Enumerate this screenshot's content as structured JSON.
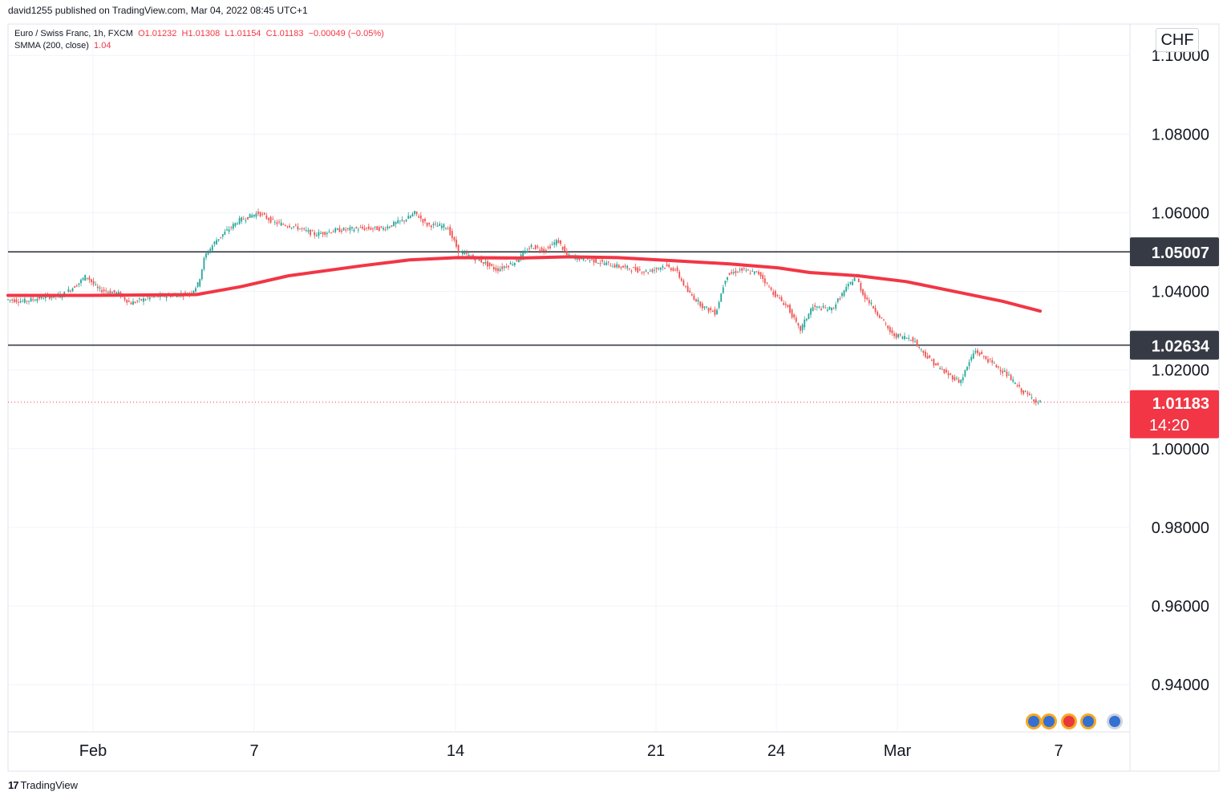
{
  "credit": "david1255 published on TradingView.com, Mar 04, 2022 08:45 UTC+1",
  "legend": {
    "symbol": "Euro / Swiss Franc, 1h, FXCM",
    "open": "O1.01232",
    "high": "H1.01308",
    "low": "L1.01154",
    "close": "C1.01183",
    "change": "−0.00049 (−0.05%)",
    "indicator": "SMMA (200, close)",
    "indicator_value": "1.04"
  },
  "currency": "CHF",
  "branding": "TradingView",
  "colors": {
    "up": "#26a69a",
    "down": "#ef5350",
    "smma": "#f23645",
    "level": "#363a45",
    "price_tag": "#f23645"
  },
  "chart_data": {
    "type": "candlestick",
    "ylim": [
      0.928,
      1.108
    ],
    "y_ticks": [
      "1.10000",
      "1.08000",
      "1.06000",
      "1.04000",
      "1.02000",
      "1.00000",
      "0.98000",
      "0.96000",
      "0.94000"
    ],
    "y_tick_values": [
      1.1,
      1.08,
      1.06,
      1.04,
      1.02,
      1.0,
      0.98,
      0.96,
      0.94
    ],
    "x_ticks": [
      "Feb",
      "7",
      "14",
      "21",
      "24",
      "Mar",
      "7"
    ],
    "horizontal_levels": [
      {
        "value": 1.05007,
        "label": "1.05007"
      },
      {
        "value": 1.02634,
        "label": "1.02634"
      }
    ],
    "last_price": {
      "value": 1.01183,
      "label": "1.01183",
      "countdown": "14:20"
    },
    "price_path": [
      [
        0,
        1.038
      ],
      [
        22,
        1.0375
      ],
      [
        45,
        1.0385
      ],
      [
        70,
        1.039
      ],
      [
        90,
        1.042
      ],
      [
        100,
        1.044
      ],
      [
        115,
        1.0405
      ],
      [
        140,
        1.0395
      ],
      [
        155,
        1.037
      ],
      [
        180,
        1.0385
      ],
      [
        205,
        1.039
      ],
      [
        230,
        1.0395
      ],
      [
        240,
        1.042
      ],
      [
        248,
        1.049
      ],
      [
        262,
        1.053
      ],
      [
        290,
        1.058
      ],
      [
        315,
        1.06
      ],
      [
        335,
        1.0575
      ],
      [
        360,
        1.0565
      ],
      [
        385,
        1.0545
      ],
      [
        410,
        1.0555
      ],
      [
        440,
        1.056
      ],
      [
        470,
        1.056
      ],
      [
        500,
        1.0585
      ],
      [
        510,
        1.06
      ],
      [
        525,
        1.057
      ],
      [
        550,
        1.0565
      ],
      [
        565,
        1.05
      ],
      [
        590,
        1.048
      ],
      [
        612,
        1.0455
      ],
      [
        635,
        1.0475
      ],
      [
        655,
        1.0515
      ],
      [
        672,
        1.0505
      ],
      [
        688,
        1.053
      ],
      [
        700,
        1.049
      ],
      [
        730,
        1.048
      ],
      [
        760,
        1.0465
      ],
      [
        800,
        1.045
      ],
      [
        820,
        1.0465
      ],
      [
        835,
        1.0455
      ],
      [
        850,
        1.04
      ],
      [
        870,
        1.036
      ],
      [
        885,
        1.0345
      ],
      [
        898,
        1.044
      ],
      [
        915,
        1.0455
      ],
      [
        940,
        1.0445
      ],
      [
        955,
        1.04
      ],
      [
        975,
        1.036
      ],
      [
        990,
        1.03
      ],
      [
        1005,
        1.036
      ],
      [
        1030,
        1.0355
      ],
      [
        1045,
        1.04
      ],
      [
        1060,
        1.044
      ],
      [
        1068,
        1.0395
      ],
      [
        1085,
        1.035
      ],
      [
        1105,
        1.029
      ],
      [
        1130,
        1.028
      ],
      [
        1150,
        1.023
      ],
      [
        1170,
        1.0195
      ],
      [
        1190,
        1.017
      ],
      [
        1208,
        1.025
      ],
      [
        1225,
        1.0225
      ],
      [
        1245,
        1.0195
      ],
      [
        1265,
        1.015
      ],
      [
        1287,
        1.0118
      ]
    ],
    "smma_path": [
      [
        0,
        1.039
      ],
      [
        100,
        1.039
      ],
      [
        235,
        1.0392
      ],
      [
        290,
        1.0412
      ],
      [
        350,
        1.044
      ],
      [
        440,
        1.0465
      ],
      [
        500,
        1.048
      ],
      [
        560,
        1.0486
      ],
      [
        640,
        1.0485
      ],
      [
        700,
        1.0488
      ],
      [
        760,
        1.0486
      ],
      [
        830,
        1.0478
      ],
      [
        900,
        1.047
      ],
      [
        960,
        1.046
      ],
      [
        1000,
        1.0448
      ],
      [
        1060,
        1.044
      ],
      [
        1120,
        1.0425
      ],
      [
        1180,
        1.04
      ],
      [
        1240,
        1.0375
      ],
      [
        1287,
        1.035
      ]
    ]
  }
}
